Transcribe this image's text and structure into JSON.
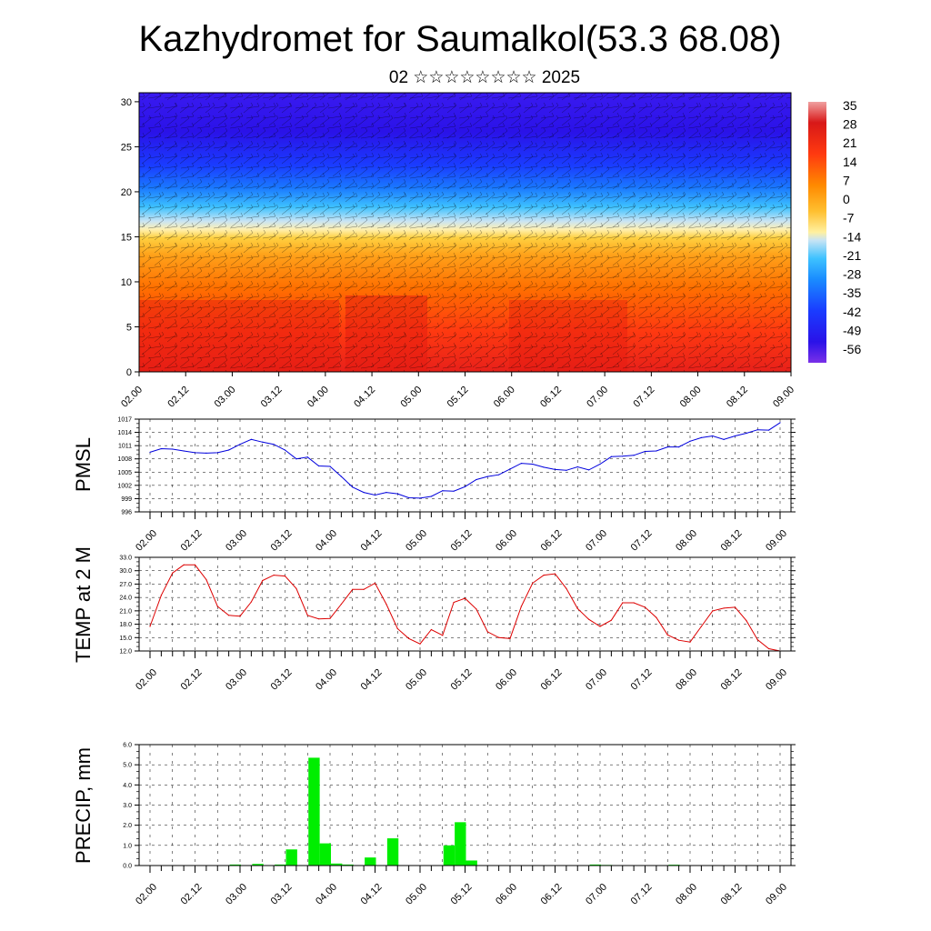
{
  "title": "Kazhydromet for Saumalkol(53.3 68.08)",
  "subtitle": "02 ☆☆☆☆☆☆☆☆ 2025",
  "x_ticks": [
    "02.00",
    "02.12",
    "03.00",
    "03.12",
    "04.00",
    "04.12",
    "05.00",
    "05.12",
    "06.00",
    "06.12",
    "07.00",
    "07.12",
    "08.00",
    "08.12",
    "09.00"
  ],
  "colors": {
    "pmsl_line": "#0000dd",
    "temp_line": "#dd0000",
    "precip_bar": "#00ee00"
  },
  "chart_data": [
    {
      "type": "heatmap",
      "y_ticks": [
        "0",
        "5",
        "10",
        "15",
        "20",
        "25",
        "30"
      ],
      "ylim": [
        0,
        31
      ],
      "colorbar": {
        "labels": [
          "35",
          "28",
          "21",
          "14",
          "7",
          "0",
          "-7",
          "-14",
          "-21",
          "-28",
          "-35",
          "-42",
          "-49",
          "-56"
        ]
      },
      "overlay": "wind-barbs"
    },
    {
      "type": "line",
      "ylabel": "PMSL",
      "ylim": [
        996,
        1017
      ],
      "y_ticks": [
        "1017",
        "1014",
        "1011",
        "1008",
        "1005",
        "1002",
        "999",
        "996"
      ],
      "x": [
        0,
        3,
        6,
        9,
        12,
        15,
        18,
        21,
        24,
        27,
        30,
        33,
        36,
        39,
        42,
        45,
        48,
        51,
        54,
        57,
        60,
        63,
        66,
        69,
        72,
        75,
        78,
        81,
        84,
        87,
        90,
        93,
        96,
        99,
        102,
        105,
        108,
        111,
        114,
        117,
        120,
        123,
        126,
        129,
        132,
        135,
        138,
        141,
        144,
        147,
        150,
        153,
        156,
        159,
        162,
        165,
        168
      ],
      "values": [
        1009.5,
        1010.3,
        1010.2,
        1009.8,
        1009.4,
        1009.3,
        1009.4,
        1010.0,
        1011.3,
        1012.4,
        1011.8,
        1011.3,
        1010.0,
        1008.0,
        1008.4,
        1006.4,
        1006.3,
        1004.0,
        1001.6,
        1000.4,
        999.8,
        1000.4,
        1000.1,
        999.2,
        999.1,
        999.5,
        1000.8,
        1000.7,
        1001.7,
        1003.3,
        1004.0,
        1004.4,
        1005.7,
        1007.0,
        1006.8,
        1006.1,
        1005.6,
        1005.4,
        1006.2,
        1005.5,
        1006.8,
        1008.5,
        1008.6,
        1008.8,
        1009.7,
        1009.8,
        1010.7,
        1010.7,
        1012.0,
        1012.8,
        1013.2,
        1012.4,
        1013.2,
        1013.8,
        1014.6,
        1014.5,
        1016.2
      ]
    },
    {
      "type": "line",
      "ylabel": "TEMP at 2 M",
      "ylim": [
        12,
        33
      ],
      "y_ticks": [
        "33.0",
        "30.0",
        "27.0",
        "24.0",
        "21.0",
        "18.0",
        "15.0",
        "12.0"
      ],
      "x": [
        0,
        3,
        6,
        9,
        12,
        15,
        18,
        21,
        24,
        27,
        30,
        33,
        36,
        39,
        42,
        45,
        48,
        51,
        54,
        57,
        60,
        63,
        66,
        69,
        72,
        75,
        78,
        81,
        84,
        87,
        90,
        93,
        96,
        99,
        102,
        105,
        108,
        111,
        114,
        117,
        120,
        123,
        126,
        129,
        132,
        135,
        138,
        141,
        144,
        147,
        150,
        153,
        156,
        159,
        162,
        165,
        168
      ],
      "values": [
        17.5,
        24.5,
        29.5,
        31.3,
        31.3,
        28.0,
        22.0,
        20.0,
        19.8,
        23.0,
        27.8,
        29.0,
        28.8,
        26.0,
        20.0,
        19.2,
        19.3,
        22.5,
        25.8,
        25.8,
        27.2,
        22.5,
        17.0,
        14.8,
        13.6,
        16.8,
        15.5,
        22.9,
        23.8,
        21.4,
        16.3,
        15.0,
        14.8,
        22.0,
        27.2,
        29.0,
        29.3,
        26.0,
        21.5,
        19.1,
        17.5,
        18.9,
        22.8,
        22.8,
        21.8,
        19.5,
        15.6,
        14.4,
        14.0,
        17.5,
        21.0,
        21.6,
        21.8,
        18.8,
        14.5,
        12.5,
        12.0
      ]
    },
    {
      "type": "bar",
      "ylabel": "PRECIP, mm",
      "ylim": [
        0,
        6
      ],
      "y_ticks": [
        "6.0",
        "5.0",
        "4.0",
        "3.0",
        "2.0",
        "1.0",
        "0.0"
      ],
      "x": [
        0,
        3,
        6,
        9,
        12,
        15,
        18,
        21,
        24,
        27,
        30,
        33,
        36,
        39,
        42,
        45,
        48,
        51,
        54,
        57,
        60,
        63,
        66,
        69,
        72,
        75,
        78,
        81,
        84,
        87,
        90,
        93,
        96,
        99,
        102,
        105,
        108,
        111,
        114,
        117,
        120,
        123,
        126,
        129,
        132,
        135,
        138,
        141,
        144,
        147,
        150,
        153,
        156,
        159,
        162,
        165
      ],
      "values": [
        0,
        0,
        0,
        0,
        0,
        0,
        0,
        0.05,
        0,
        0.08,
        0,
        0.05,
        0.8,
        0,
        5.35,
        1.1,
        0.1,
        0.05,
        0,
        0.4,
        0,
        1.35,
        0,
        0,
        0,
        0,
        1.0,
        2.15,
        0.25,
        0,
        0,
        0,
        0,
        0,
        0,
        0,
        0,
        0,
        0,
        0.05,
        0.03,
        0,
        0,
        0,
        0.02,
        0,
        0.04,
        0,
        0,
        0,
        0,
        0,
        0,
        0,
        0,
        0
      ]
    }
  ]
}
